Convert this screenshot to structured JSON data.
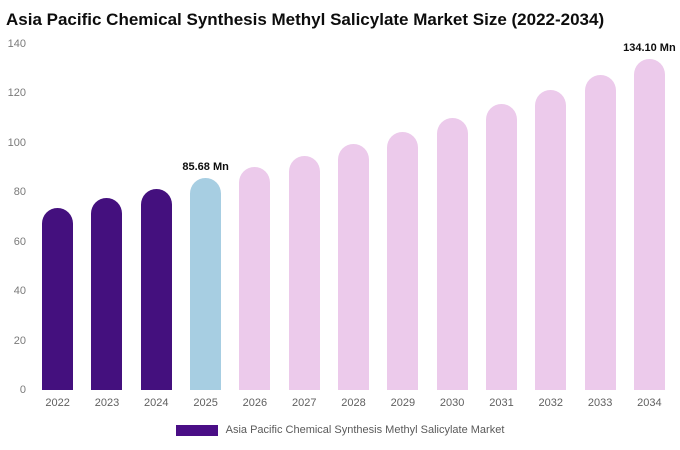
{
  "title": "Asia Pacific Chemical Synthesis Methyl Salicylate Market Size (2022-2034)",
  "legend": {
    "label": "Asia Pacific Chemical Synthesis Methyl Salicylate Market",
    "swatch_color": "#4a0e86"
  },
  "colors": {
    "historical_bar": "#44107e",
    "current_year_bar": "#a7cee2",
    "forecast_bar": "#eccaeb",
    "axis_text": "#7a7a7a",
    "label_text": "#0d0d0d"
  },
  "chart_data": {
    "type": "bar",
    "title": "Asia Pacific Chemical Synthesis Methyl Salicylate Market Size (2022-2034)",
    "xlabel": "",
    "ylabel": "",
    "unit": "Mn",
    "ylim": [
      0,
      140
    ],
    "yticks": [
      0,
      20,
      40,
      60,
      80,
      100,
      120,
      140
    ],
    "grid": false,
    "legend_position": "bottom",
    "categories": [
      "2022",
      "2023",
      "2024",
      "2025",
      "2026",
      "2027",
      "2028",
      "2029",
      "2030",
      "2031",
      "2032",
      "2033",
      "2034"
    ],
    "values": [
      73.8,
      77.6,
      81.5,
      85.68,
      90.06,
      94.66,
      99.5,
      104.58,
      109.93,
      115.55,
      121.45,
      127.66,
      134.1
    ],
    "bar_colors": [
      "#44107e",
      "#44107e",
      "#44107e",
      "#a7cee2",
      "#eccaeb",
      "#eccaeb",
      "#eccaeb",
      "#eccaeb",
      "#eccaeb",
      "#eccaeb",
      "#eccaeb",
      "#eccaeb",
      "#eccaeb"
    ],
    "data_labels": {
      "2025": "85.68 Mn",
      "2034": "134.10 Mn"
    }
  }
}
